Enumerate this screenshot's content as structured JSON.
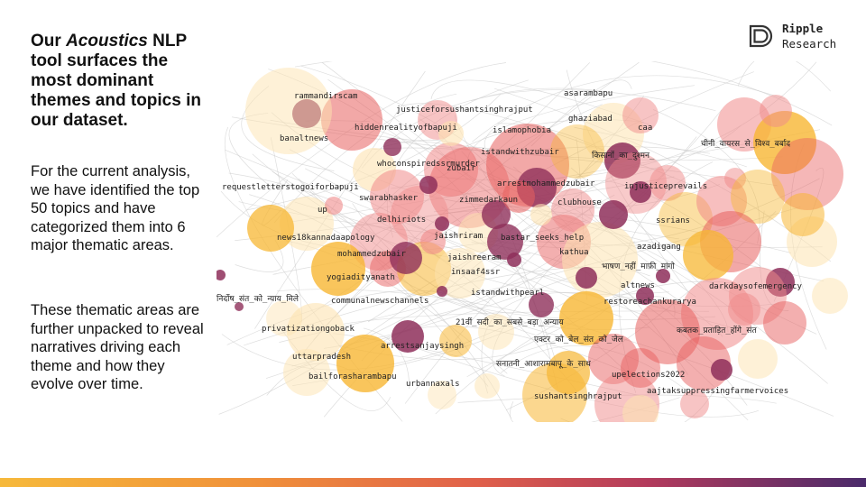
{
  "heading": {
    "before": "Our ",
    "italic": "Acoustics",
    "after": " NLP tool surfaces the most dominant themes and topics in our dataset."
  },
  "paragraph1": "For the current analysis, we have identified the top 50 topics and have categorized them into 6 major thematic areas.",
  "paragraph2": "These thematic areas are further unpacked to reveal narratives driving each theme and how they evolve over time.",
  "logo": {
    "line1": "Ripple",
    "line2": "Research",
    "icon": "ripple-logo-icon"
  },
  "colors": {
    "yellow": "#f7b733",
    "orange": "#f29040",
    "red": "#e8605f",
    "pink": "#f08a8a",
    "plum": "#8e2f5a",
    "cream": "#fde3b0",
    "edges": "#c8c8c8"
  },
  "labels": [
    {
      "id": "rammandirscam",
      "text": "rammandirscam"
    },
    {
      "id": "justiceforsushantsinghrajput",
      "text": "justiceforsushantsinghrajput"
    },
    {
      "id": "asarambapu",
      "text": "asarambapu"
    },
    {
      "id": "hiddenrealityofbapuji",
      "text": "hiddenrealityofbapuji"
    },
    {
      "id": "islamophobia",
      "text": "islamophobia"
    },
    {
      "id": "ghaziabad",
      "text": "ghaziabad"
    },
    {
      "id": "caa",
      "text": "caa"
    },
    {
      "id": "banaltnews",
      "text": "banaltnews"
    },
    {
      "id": "chini-virus",
      "text": "चीनी_वायरस_से_विश्व_बर्बाद"
    },
    {
      "id": "istandwithzubair",
      "text": "istandwithzubair"
    },
    {
      "id": "kisano-ka-dushman",
      "text": "किसानों_का_दुश्मन_"
    },
    {
      "id": "whoconspiredssrmurder",
      "text": "whoconspiredssrmurder"
    },
    {
      "id": "zubair",
      "text": "zubair"
    },
    {
      "id": "arrestmohammedzubair",
      "text": "arrestmohammedzubair"
    },
    {
      "id": "injusticeprevails",
      "text": "injusticeprevails"
    },
    {
      "id": "requestlettersto",
      "text": "requestletterstogoiforbapuji"
    },
    {
      "id": "swarabhasker",
      "text": "swarabhasker"
    },
    {
      "id": "zimmedarkaun",
      "text": "zimmedarkaun"
    },
    {
      "id": "clubhouse",
      "text": "clubhouse"
    },
    {
      "id": "up",
      "text": "up"
    },
    {
      "id": "delhiriots",
      "text": "delhiriots"
    },
    {
      "id": "ssrians",
      "text": "ssrians"
    },
    {
      "id": "jaishriram",
      "text": "jaishriram"
    },
    {
      "id": "bastar_seeks_help",
      "text": "bastar_seeks_help"
    },
    {
      "id": "news18kannadaapology",
      "text": "news18kannadaapology"
    },
    {
      "id": "azadigang",
      "text": "azadigang"
    },
    {
      "id": "kathua",
      "text": "kathua"
    },
    {
      "id": "mohammedzubair",
      "text": "mohammedzubair"
    },
    {
      "id": "jaishreeram",
      "text": "jaishreeram"
    },
    {
      "id": "bhashan-nahi",
      "text": "भाषण_नहीं_माफ़ी_मांगो"
    },
    {
      "id": "insaaf4ssr",
      "text": "insaaf4ssr"
    },
    {
      "id": "yogiadityanath",
      "text": "yogiadityanath"
    },
    {
      "id": "altnews",
      "text": "altnews"
    },
    {
      "id": "darkdaysofemergency",
      "text": "darkdaysofemergency"
    },
    {
      "id": "istandwithpearl",
      "text": "istandwithpearl"
    },
    {
      "id": "nirdosh-sant",
      "text": "निर्दोष_संत_को_न्याय_मिले"
    },
    {
      "id": "communalnewschannels",
      "text": "communalnewschannels"
    },
    {
      "id": "restoreachankurarya",
      "text": "restoreachankurarya"
    },
    {
      "id": "21vi-sadi",
      "text": "21वीं_सदी_का_सबसे_बड़ा_अन्याय"
    },
    {
      "id": "privatizationgoback",
      "text": "privatizationgoback"
    },
    {
      "id": "kabtak-pratadit",
      "text": "कबतक_प्रताड़ित_होंगे_संत"
    },
    {
      "id": "actor-ko-bail",
      "text": "एक्टर_को_बेल_संत_को_जेल"
    },
    {
      "id": "arrestsanjaysingh",
      "text": "arrestsanjaysingh"
    },
    {
      "id": "uttarpradesh",
      "text": "uttarpradesh"
    },
    {
      "id": "sanatani-asarambapu",
      "text": "सनातनी_आशारामबापू_के_साथ"
    },
    {
      "id": "bailforasharambapu",
      "text": "bailforasharambapu"
    },
    {
      "id": "upelections2022",
      "text": "upelections2022"
    },
    {
      "id": "urbannaxals",
      "text": "urbannaxals"
    },
    {
      "id": "aajtaksuppressing",
      "text": "aajtaksuppressingfarmervoices"
    },
    {
      "id": "sushantsinghrajput",
      "text": "sushantsinghrajput"
    }
  ]
}
